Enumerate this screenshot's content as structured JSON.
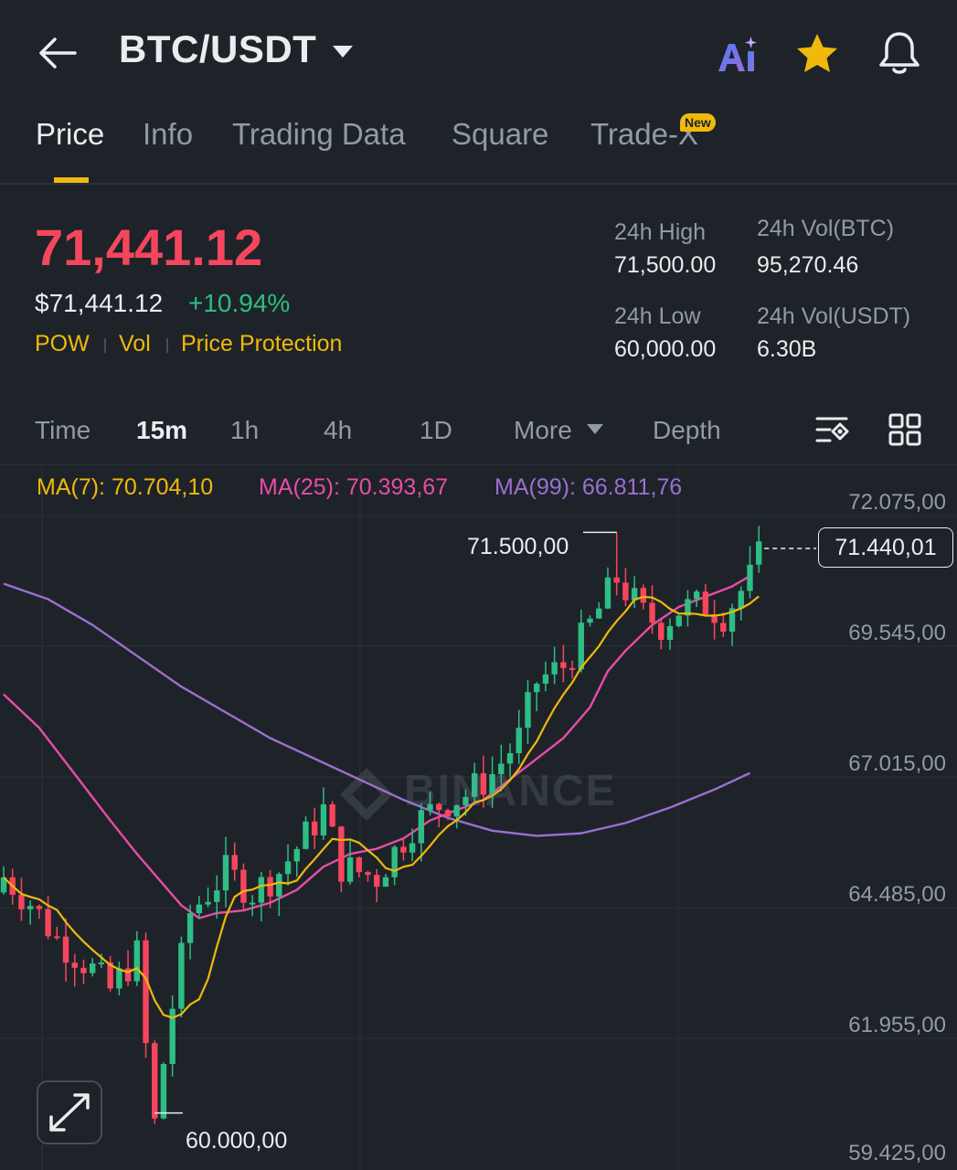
{
  "header": {
    "pair": "BTC/USDT",
    "icons": [
      "back-arrow-icon",
      "chevron-down-icon",
      "ai-icon",
      "star-icon",
      "bell-icon"
    ]
  },
  "tabs": [
    {
      "label": "Price",
      "active": true
    },
    {
      "label": "Info"
    },
    {
      "label": "Trading Data"
    },
    {
      "label": "Square"
    },
    {
      "label": "Trade-X",
      "badge": "New"
    }
  ],
  "price": {
    "last": "71,441.12",
    "usd": "$71,441.12",
    "change": "+10.94%",
    "tags": [
      "POW",
      "Vol",
      "Price Protection"
    ]
  },
  "stats": {
    "high_label": "24h High",
    "high": "71,500.00",
    "low_label": "24h Low",
    "low": "60,000.00",
    "vol_btc_label": "24h Vol(BTC)",
    "vol_btc": "95,270.46",
    "vol_usdt_label": "24h Vol(USDT)",
    "vol_usdt": "6.30B"
  },
  "timeframes": {
    "items": [
      "Time",
      "15m",
      "1h",
      "4h",
      "1D",
      "More",
      "Depth"
    ],
    "active": "15m"
  },
  "indicators": {
    "ma7": "MA(7): 70.704,10",
    "ma25": "MA(25): 70.393,67",
    "ma99": "MA(99): 66.811,76"
  },
  "colors": {
    "up": "#2ebd85",
    "down": "#f6465d",
    "accent": "#f0b90b",
    "ma7": "#f0b90b",
    "ma25": "#e84ca8",
    "ma99": "#9b6fd1"
  },
  "chart_data": {
    "type": "candlestick",
    "y_axis_labels": [
      "72.075,00",
      "69.545,00",
      "67.015,00",
      "64.485,00",
      "61.955,00",
      "59.425,00"
    ],
    "ylim": [
      59425,
      72075
    ],
    "high_label": "71.500,00",
    "low_label": "60.000,00",
    "current_price_label": "71.440,01",
    "watermark": "BINANCE",
    "ma99_points": [
      [
        0,
        70500
      ],
      [
        5,
        70200
      ],
      [
        10,
        69700
      ],
      [
        15,
        69100
      ],
      [
        20,
        68500
      ],
      [
        25,
        68000
      ],
      [
        30,
        67500
      ],
      [
        35,
        67100
      ],
      [
        40,
        66700
      ],
      [
        45,
        66300
      ],
      [
        50,
        65950
      ],
      [
        55,
        65700
      ],
      [
        60,
        65600
      ],
      [
        65,
        65650
      ],
      [
        70,
        65850
      ],
      [
        75,
        66150
      ],
      [
        80,
        66500
      ],
      [
        84,
        66820
      ]
    ],
    "ma25_points": [
      [
        0,
        68350
      ],
      [
        4,
        67700
      ],
      [
        8,
        66800
      ],
      [
        12,
        65900
      ],
      [
        15,
        65250
      ],
      [
        18,
        64650
      ],
      [
        20,
        64250
      ],
      [
        22,
        64000
      ],
      [
        24,
        64100
      ],
      [
        27,
        64150
      ],
      [
        30,
        64300
      ],
      [
        33,
        64550
      ],
      [
        36,
        65000
      ],
      [
        39,
        65250
      ],
      [
        42,
        65350
      ],
      [
        45,
        65550
      ],
      [
        48,
        65900
      ],
      [
        51,
        66100
      ],
      [
        54,
        66300
      ],
      [
        57,
        66700
      ],
      [
        60,
        67100
      ],
      [
        63,
        67500
      ],
      [
        66,
        68100
      ],
      [
        68,
        68800
      ],
      [
        70,
        69200
      ],
      [
        73,
        69700
      ],
      [
        76,
        70050
      ],
      [
        79,
        70250
      ],
      [
        82,
        70450
      ],
      [
        84,
        70650
      ]
    ]
  }
}
